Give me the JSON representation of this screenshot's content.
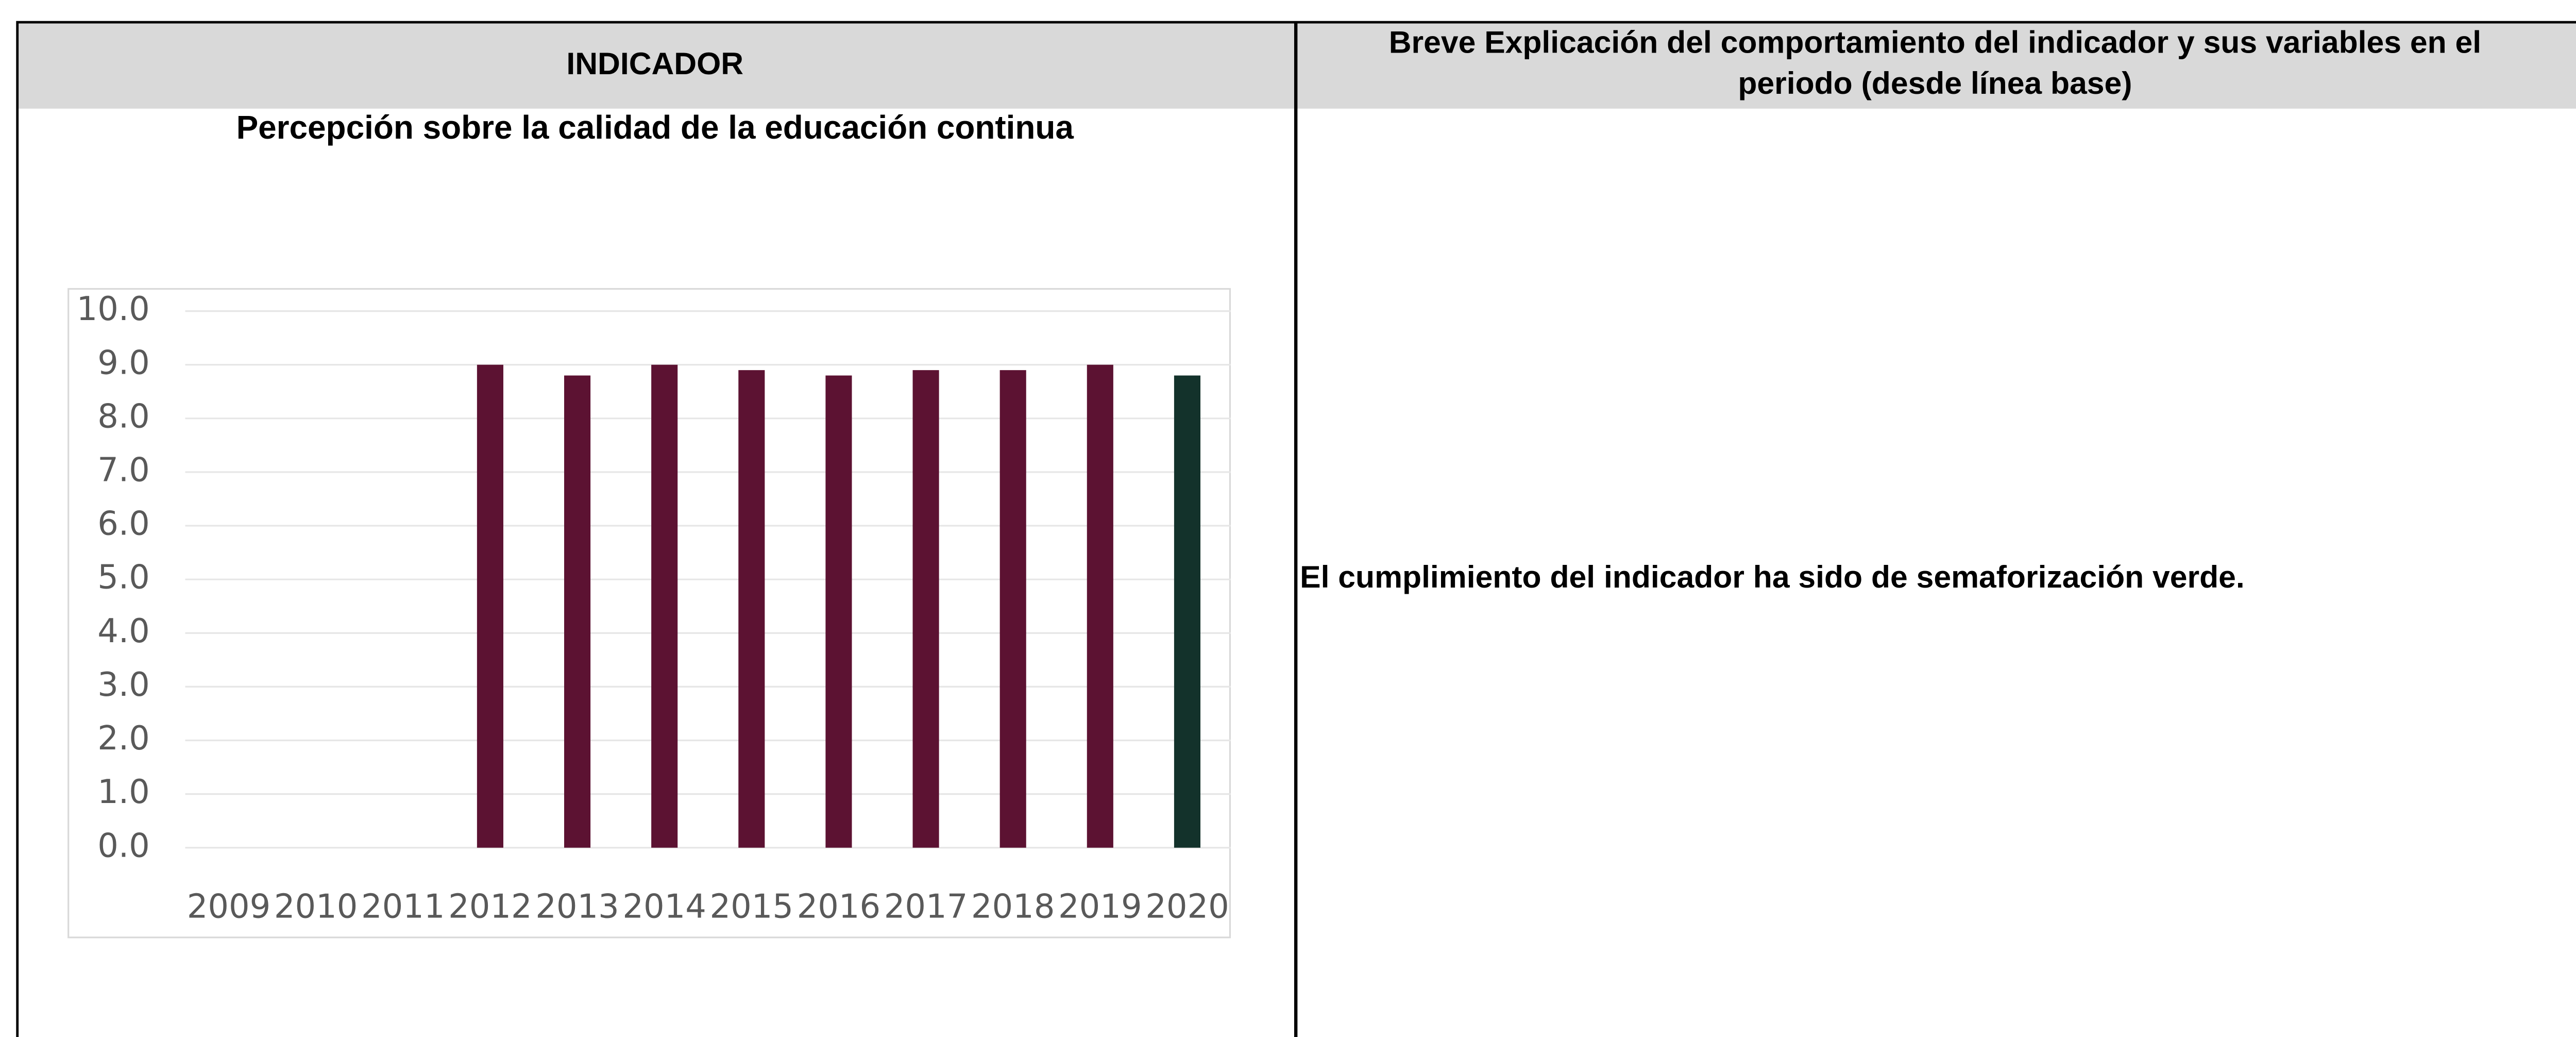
{
  "header": {
    "left": "INDICADOR",
    "right": [
      "Breve Explicación del comportamiento del indicador y sus variables en el",
      "periodo (desde línea base)"
    ]
  },
  "chart_data": {
    "type": "bar",
    "title": "Percepción sobre la calidad de la educación continua",
    "categories": [
      "2009",
      "2010",
      "2011",
      "2012",
      "2013",
      "2014",
      "2015",
      "2016",
      "2017",
      "2018",
      "2019",
      "2020"
    ],
    "values": [
      null,
      null,
      null,
      9.0,
      8.8,
      9.0,
      8.9,
      8.8,
      8.9,
      8.9,
      9.0,
      8.8
    ],
    "colors": [
      "#5c1232",
      "#5c1232",
      "#5c1232",
      "#5c1232",
      "#5c1232",
      "#5c1232",
      "#5c1232",
      "#5c1232",
      "#5c1232",
      "#5c1232",
      "#5c1232",
      "#13322b"
    ],
    "ylim": [
      0,
      10
    ],
    "yticks": [
      {
        "value": 0,
        "label": "0.0"
      },
      {
        "value": 1,
        "label": "1.0"
      },
      {
        "value": 2,
        "label": "2.0"
      },
      {
        "value": 3,
        "label": "3.0"
      },
      {
        "value": 4,
        "label": "4.0"
      },
      {
        "value": 5,
        "label": "5.0"
      },
      {
        "value": 6,
        "label": "6.0"
      },
      {
        "value": 7,
        "label": "7.0"
      },
      {
        "value": 8,
        "label": "8.0"
      },
      {
        "value": 9,
        "label": "9.0"
      },
      {
        "value": 10,
        "label": "10.0"
      }
    ],
    "grid": true
  },
  "explanation": "El cumplimiento del indicador ha sido de semaforización verde."
}
